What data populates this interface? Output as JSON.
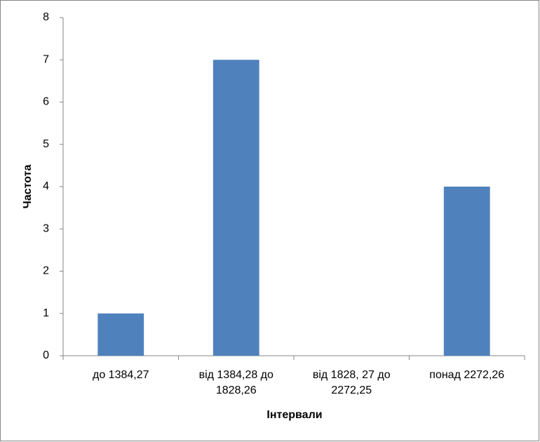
{
  "chart_data": {
    "type": "bar",
    "categories": [
      "до 1384,27",
      "від 1384,28 до 1828,26",
      "від 1828, 27 до 2272,25",
      "понад 2272,26"
    ],
    "values": [
      1,
      7,
      0,
      4
    ],
    "color": "#4f81bd",
    "ylim": [
      0,
      8
    ],
    "yticks": [
      0,
      1,
      2,
      3,
      4,
      5,
      6,
      7,
      8
    ],
    "grid": false,
    "x_label": "Інтервали",
    "y_label": "Частота"
  }
}
